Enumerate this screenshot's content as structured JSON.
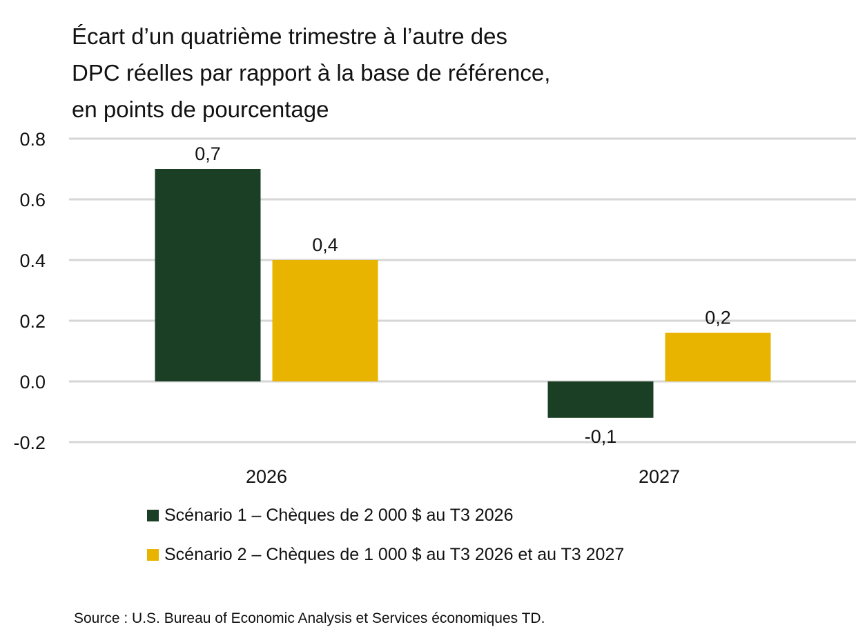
{
  "chart_data": {
    "type": "bar",
    "title": "Écart d’un quatrième trimestre à l’autre des DPC réelles par rapport à la base de référence, en points de pourcentage",
    "title_lines": [
      "Écart d’un quatrième trimestre à l’autre des",
      "DPC réelles par rapport à la base de référence,",
      "en points de pourcentage"
    ],
    "categories": [
      "2026",
      "2027"
    ],
    "series": [
      {
        "name": "Scénario 1 – Chèques de 2 000 $ au T3 2026",
        "color": "#1b3f24",
        "values": [
          0.7,
          -0.12
        ],
        "labels": [
          "0,7",
          "-0,1"
        ]
      },
      {
        "name": "Scénario 2 – Chèques de 1 000 $ au T3 2026 et au T3 2027",
        "color": "#e8b400",
        "values": [
          0.4,
          0.16
        ],
        "labels": [
          "0,4",
          "0,2"
        ]
      }
    ],
    "yticks": [
      "0.8",
      "0.6",
      "0.4",
      "0.2",
      "0.0",
      "-0.2"
    ],
    "ytick_values": [
      0.8,
      0.6,
      0.4,
      0.2,
      0.0,
      -0.2
    ],
    "ylim": [
      -0.2,
      0.8
    ],
    "grid": true,
    "legend_placement": "bottom",
    "source": "Source : U.S. Bureau of Economic Analysis et Services économiques TD."
  }
}
